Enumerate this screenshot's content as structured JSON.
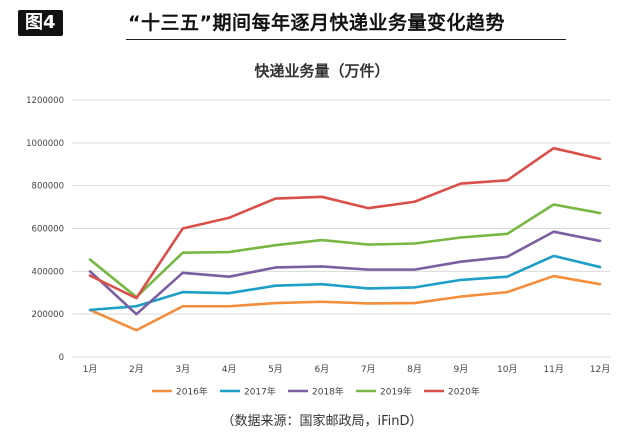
{
  "figure": {
    "badge": "图4",
    "title": "“十三五”期间每年逐月快递业务量变化趋势",
    "source": "（数据来源：国家邮政局，iFinD）"
  },
  "chart_data": {
    "type": "line",
    "title": "快递业务量（万件）",
    "xlabel": "",
    "ylabel": "",
    "ylim": [
      0,
      1200000
    ],
    "yticks": [
      0,
      200000,
      400000,
      600000,
      800000,
      1000000,
      1200000
    ],
    "ytick_labels": [
      "0",
      "200000",
      "400000",
      "600000",
      "800000",
      "1000000",
      "1200000"
    ],
    "grid": true,
    "legend_position": "bottom",
    "categories": [
      "1月",
      "2月",
      "3月",
      "4月",
      "5月",
      "6月",
      "7月",
      "8月",
      "9月",
      "10月",
      "11月",
      "12月"
    ],
    "series": [
      {
        "name": "2016年",
        "color": "#f28e3c",
        "values": [
          220000,
          125000,
          237000,
          237000,
          252000,
          258000,
          250000,
          252000,
          282000,
          303000,
          378000,
          340000
        ]
      },
      {
        "name": "2017年",
        "color": "#1e9fc7",
        "values": [
          220000,
          237000,
          303000,
          298000,
          333000,
          340000,
          320000,
          325000,
          360000,
          375000,
          472000,
          420000
        ]
      },
      {
        "name": "2018年",
        "color": "#7b5fa0",
        "values": [
          400000,
          200000,
          393000,
          375000,
          418000,
          423000,
          408000,
          408000,
          445000,
          468000,
          585000,
          542000
        ]
      },
      {
        "name": "2019年",
        "color": "#76b843",
        "values": [
          455000,
          280000,
          487000,
          490000,
          522000,
          546000,
          525000,
          530000,
          558000,
          575000,
          712000,
          672000
        ]
      },
      {
        "name": "2020年",
        "color": "#d9504a",
        "values": [
          380000,
          275000,
          600000,
          650000,
          740000,
          748000,
          695000,
          725000,
          810000,
          825000,
          975000,
          925000
        ]
      }
    ]
  }
}
